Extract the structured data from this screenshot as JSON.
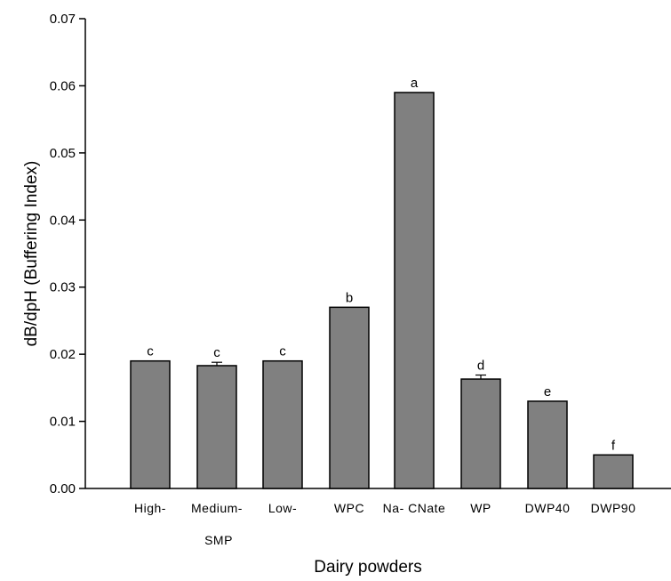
{
  "chart_data": {
    "type": "bar",
    "title": "",
    "xlabel": "Dairy powders",
    "ylabel": "dB/dpH (Buffering Index)",
    "ylim": [
      0,
      0.07
    ],
    "yticks": [
      "0.00",
      "0.01",
      "0.02",
      "0.03",
      "0.04",
      "0.05",
      "0.06",
      "0.07"
    ],
    "categories": [
      "High-",
      "Medium-",
      "Low-",
      "WPC",
      "Na- CNate",
      "WP",
      "DWP40",
      "DWP90"
    ],
    "group_label": "SMP",
    "values": [
      0.019,
      0.0183,
      0.019,
      0.027,
      0.059,
      0.0163,
      0.013,
      0.005
    ],
    "errors": [
      0,
      0.0005,
      0,
      0,
      0,
      0.0006,
      0,
      0
    ],
    "significance_letters": [
      "c",
      "c",
      "c",
      "b",
      "a",
      "d",
      "e",
      "f"
    ],
    "grid": false,
    "bar_color": "#808080",
    "edge_color": "#000000"
  }
}
